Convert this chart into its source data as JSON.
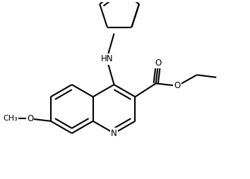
{
  "bg_color": "#ffffff",
  "line_color": "#000000",
  "line_width": 1.5,
  "font_size": 8.5,
  "figsize": [
    3.54,
    2.54
  ],
  "dpi": 100,
  "xlim": [
    0,
    10
  ],
  "ylim": [
    0,
    7.2
  ]
}
